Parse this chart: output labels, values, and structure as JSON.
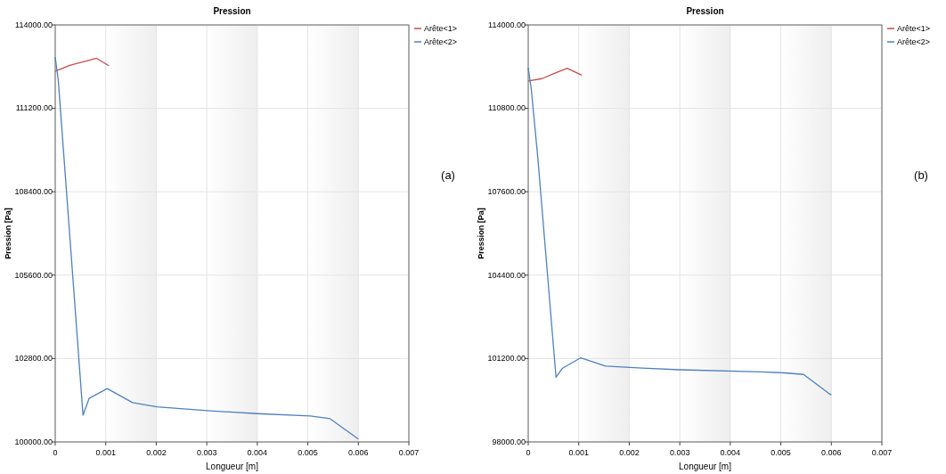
{
  "chart_data": [
    {
      "type": "line",
      "title": "Pression",
      "xlabel": "Longueur [m]",
      "ylabel": "Pression [Pa]",
      "annotations": [
        "(a)"
      ],
      "series": [
        {
          "name": "Arête<1>",
          "color": "#c0504d",
          "x": [
            0,
            0.0003,
            0.00082,
            0.00106
          ],
          "values": [
            112450,
            112650,
            112880,
            112630
          ]
        },
        {
          "name": "Arête<2>",
          "color": "#4f81bd",
          "x": [
            0,
            6e-05,
            0.00055,
            0.00067,
            0.00103,
            0.00153,
            0.00201,
            0.00301,
            0.004,
            0.00505,
            0.00544,
            0.006
          ],
          "values": [
            112920,
            112150,
            100900,
            101460,
            101790,
            101320,
            101180,
            101050,
            100950,
            100870,
            100780,
            100100
          ]
        }
      ],
      "xlim": [
        0,
        0.007
      ],
      "xticks": [
        0,
        0.001,
        0.002,
        0.003,
        0.004,
        0.005,
        0.006,
        0.007
      ],
      "ylim": [
        100000,
        114000
      ],
      "yticks": [
        {
          "value": 100000,
          "label": "100000.00"
        },
        {
          "value": 102800,
          "label": "102800.00"
        },
        {
          "value": 105600,
          "label": "105600.00"
        },
        {
          "value": 108400,
          "label": "108400.00"
        },
        {
          "value": 111200,
          "label": "111200.00"
        },
        {
          "value": 114000,
          "label": "114000.00"
        }
      ],
      "bands": [
        {
          "axis": "x",
          "from": 0.001,
          "to": 0.002,
          "color": "#eeeeee"
        },
        {
          "axis": "x",
          "from": 0.003,
          "to": 0.004,
          "color": "#eeeeee"
        },
        {
          "axis": "x",
          "from": 0.005,
          "to": 0.006,
          "color": "#eeeeee"
        }
      ],
      "grid": true,
      "legend": "top right",
      "line_style": "solid"
    },
    {
      "type": "line",
      "title": "Pression",
      "xlabel": "Longueur [m]",
      "ylabel": "Pression [Pa]",
      "annotations": [
        "(b)"
      ],
      "series": [
        {
          "name": "Arête<1>",
          "color": "#c0504d",
          "x": [
            0,
            0.00027,
            0.00053,
            0.00077,
            0.00106
          ],
          "values": [
            111850,
            111940,
            112150,
            112340,
            112070
          ]
        },
        {
          "name": "Arête<2>",
          "color": "#4f81bd",
          "x": [
            0,
            6e-05,
            0.00019,
            0.00055,
            0.00068,
            0.00104,
            0.00153,
            0.00226,
            0.003,
            0.0046,
            0.00507,
            0.00545,
            0.00595,
            0.006
          ],
          "values": [
            112360,
            111540,
            108900,
            100480,
            100830,
            101230,
            100910,
            100830,
            100770,
            100690,
            100650,
            100590,
            99860,
            99810
          ]
        }
      ],
      "xlim": [
        0,
        0.007
      ],
      "xticks": [
        0,
        0.001,
        0.002,
        0.003,
        0.004,
        0.005,
        0.006,
        0.007
      ],
      "ylim": [
        98000,
        114000
      ],
      "yticks": [
        {
          "value": 98000,
          "label": "98000.00"
        },
        {
          "value": 101200,
          "label": "101200.00"
        },
        {
          "value": 104400,
          "label": "104400.00"
        },
        {
          "value": 107600,
          "label": "107600.00"
        },
        {
          "value": 110800,
          "label": "110800.00"
        },
        {
          "value": 114000,
          "label": "114000.00"
        }
      ],
      "bands": [
        {
          "axis": "x",
          "from": 0.001,
          "to": 0.002,
          "color": "#eeeeee"
        },
        {
          "axis": "x",
          "from": 0.003,
          "to": 0.004,
          "color": "#eeeeee"
        },
        {
          "axis": "x",
          "from": 0.005,
          "to": 0.006,
          "color": "#eeeeee"
        }
      ],
      "grid": true,
      "legend": "top right",
      "line_style": "solid"
    }
  ]
}
